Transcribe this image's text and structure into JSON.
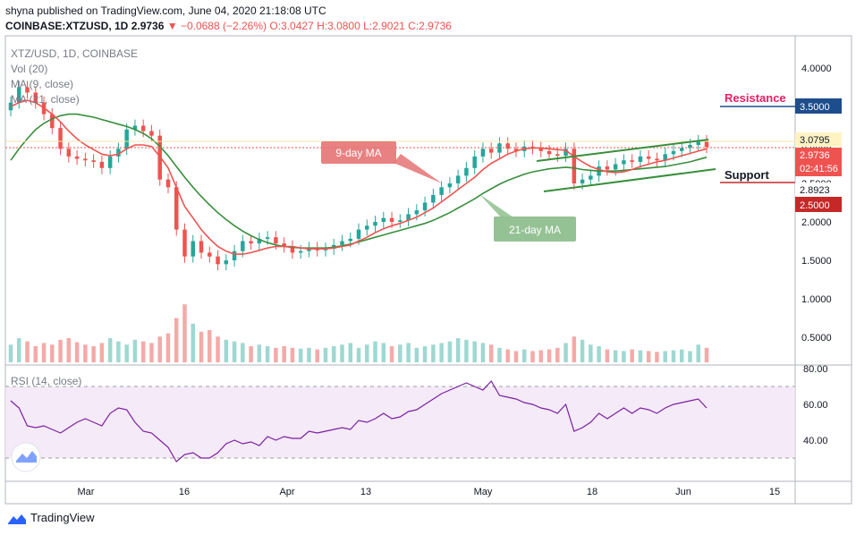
{
  "header": {
    "line1": "shyna published on TradingView.com, June 04, 2020 21:18:08 UTC",
    "symbol": "COINBASE:XTZUSD, 1D",
    "last": "2.9736",
    "change": "▼ −0.0688 (−2.26%)",
    "ohlc": "O:3.0427 H:3.0800 L:2.9021 C:2.9736"
  },
  "legend": {
    "symbol": "XTZ/USD, 1D, COINBASE",
    "vol": "Vol (20)",
    "ma9": "MA (9, close)",
    "ma21": "MA (21, close)",
    "rsi": "RSI (14, close)"
  },
  "annotations": {
    "ma9": "9-day MA",
    "ma21": "21-day MA",
    "resistance": "Resistance",
    "support": "Support"
  },
  "price_tags": {
    "resistance": "3.5000",
    "high": "3.0795",
    "last": "2.9736",
    "countdown": "02:41:56",
    "low": "2.8923",
    "support": "2.5000"
  },
  "footer": {
    "brand": "TradingView"
  },
  "colors": {
    "up": "#26a69a",
    "down": "#ef5350",
    "ma9": "#ef5350",
    "ma21": "#388e3c",
    "rsi": "#7b1fa2",
    "resistance": "#1e4d8c",
    "support": "#c62828"
  },
  "chart_data": {
    "type": "candlestick",
    "title": "XTZ/USD, 1D, COINBASE",
    "y_ticks": [
      "4.0000",
      "3.5000",
      "3.0000",
      "2.5000",
      "2.0000",
      "1.5000",
      "1.0000",
      "0.5000"
    ],
    "y_tick_values": [
      4.0,
      3.5,
      3.0,
      2.5,
      2.0,
      1.5,
      1.0,
      0.5
    ],
    "x_ticks": [
      "Mar",
      "16",
      "Apr",
      "13",
      "May",
      "18",
      "Jun",
      "15"
    ],
    "rsi_ticks": [
      "80.00",
      "60.00",
      "40.00"
    ],
    "rsi_tick_values": [
      80,
      60,
      40
    ],
    "rsi_band": [
      70,
      30
    ],
    "close": [
      3.55,
      3.75,
      3.68,
      3.55,
      3.4,
      3.22,
      2.95,
      2.85,
      2.82,
      2.8,
      2.78,
      2.7,
      2.85,
      2.95,
      3.2,
      3.25,
      3.18,
      3.12,
      2.55,
      2.45,
      1.9,
      1.55,
      1.75,
      1.6,
      1.55,
      1.45,
      1.5,
      1.62,
      1.75,
      1.72,
      1.78,
      1.8,
      1.72,
      1.68,
      1.6,
      1.62,
      1.66,
      1.63,
      1.65,
      1.7,
      1.75,
      1.78,
      1.9,
      1.95,
      2.0,
      2.05,
      2.0,
      2.02,
      2.1,
      2.15,
      2.25,
      2.35,
      2.45,
      2.5,
      2.6,
      2.7,
      2.85,
      2.95,
      2.9,
      3.02,
      2.95,
      2.92,
      2.98,
      2.96,
      2.92,
      2.88,
      2.86,
      2.95,
      2.5,
      2.55,
      2.6,
      2.72,
      2.68,
      2.75,
      2.8,
      2.78,
      2.85,
      2.82,
      2.8,
      2.88,
      2.92,
      2.96,
      3.0,
      3.05,
      2.9736
    ],
    "ma9": [
      3.5,
      3.55,
      3.58,
      3.55,
      3.48,
      3.4,
      3.3,
      3.18,
      3.08,
      3.0,
      2.94,
      2.88,
      2.86,
      2.88,
      2.95,
      3.0,
      3.0,
      2.98,
      2.85,
      2.7,
      2.45,
      2.2,
      2.05,
      1.9,
      1.78,
      1.68,
      1.62,
      1.58,
      1.58,
      1.6,
      1.63,
      1.66,
      1.68,
      1.68,
      1.68,
      1.66,
      1.65,
      1.65,
      1.65,
      1.66,
      1.68,
      1.7,
      1.75,
      1.8,
      1.86,
      1.91,
      1.95,
      1.98,
      2.02,
      2.06,
      2.12,
      2.18,
      2.26,
      2.34,
      2.42,
      2.5,
      2.58,
      2.68,
      2.76,
      2.82,
      2.88,
      2.92,
      2.95,
      2.96,
      2.96,
      2.95,
      2.94,
      2.93,
      2.85,
      2.78,
      2.72,
      2.68,
      2.65,
      2.64,
      2.65,
      2.68,
      2.72,
      2.75,
      2.78,
      2.8,
      2.83,
      2.86,
      2.89,
      2.92,
      2.95
    ],
    "ma21": [
      2.8,
      2.95,
      3.08,
      3.2,
      3.28,
      3.34,
      3.38,
      3.4,
      3.4,
      3.38,
      3.36,
      3.33,
      3.3,
      3.27,
      3.24,
      3.2,
      3.15,
      3.08,
      2.98,
      2.86,
      2.72,
      2.58,
      2.45,
      2.33,
      2.22,
      2.12,
      2.03,
      1.95,
      1.88,
      1.82,
      1.77,
      1.73,
      1.7,
      1.68,
      1.67,
      1.66,
      1.66,
      1.66,
      1.66,
      1.67,
      1.69,
      1.71,
      1.74,
      1.77,
      1.8,
      1.83,
      1.86,
      1.89,
      1.92,
      1.95,
      1.98,
      2.02,
      2.07,
      2.12,
      2.18,
      2.24,
      2.3,
      2.37,
      2.43,
      2.49,
      2.54,
      2.58,
      2.62,
      2.65,
      2.67,
      2.69,
      2.7,
      2.71,
      2.7,
      2.68,
      2.67,
      2.66,
      2.66,
      2.66,
      2.67,
      2.68,
      2.69,
      2.7,
      2.71,
      2.72,
      2.74,
      2.76,
      2.78,
      2.81,
      2.84
    ],
    "volume": [
      0.22,
      0.3,
      0.26,
      0.2,
      0.24,
      0.22,
      0.28,
      0.3,
      0.25,
      0.22,
      0.2,
      0.24,
      0.3,
      0.26,
      0.22,
      0.28,
      0.26,
      0.24,
      0.32,
      0.36,
      0.55,
      0.72,
      0.48,
      0.38,
      0.4,
      0.32,
      0.28,
      0.26,
      0.24,
      0.2,
      0.22,
      0.2,
      0.18,
      0.2,
      0.18,
      0.17,
      0.18,
      0.16,
      0.18,
      0.2,
      0.22,
      0.24,
      0.18,
      0.22,
      0.26,
      0.24,
      0.2,
      0.22,
      0.24,
      0.18,
      0.2,
      0.22,
      0.24,
      0.26,
      0.3,
      0.28,
      0.26,
      0.24,
      0.22,
      0.18,
      0.16,
      0.14,
      0.16,
      0.14,
      0.15,
      0.16,
      0.18,
      0.24,
      0.32,
      0.28,
      0.22,
      0.2,
      0.16,
      0.15,
      0.14,
      0.16,
      0.15,
      0.14,
      0.13,
      0.14,
      0.15,
      0.16,
      0.14,
      0.22,
      0.18
    ],
    "rsi": [
      62,
      58,
      48,
      47,
      48,
      46,
      44,
      47,
      50,
      52,
      50,
      48,
      55,
      58,
      57,
      50,
      45,
      44,
      40,
      36,
      28,
      32,
      33,
      30,
      30,
      33,
      38,
      40,
      38,
      39,
      37,
      42,
      40,
      42,
      41,
      41,
      45,
      44,
      45,
      46,
      47,
      46,
      51,
      50,
      52,
      55,
      52,
      53,
      56,
      57,
      60,
      63,
      66,
      68,
      70,
      72,
      70,
      68,
      73,
      65,
      64,
      63,
      61,
      60,
      58,
      57,
      55,
      60,
      45,
      47,
      50,
      55,
      52,
      55,
      58,
      55,
      58,
      57,
      55,
      58,
      60,
      61,
      62,
      63,
      58
    ]
  }
}
